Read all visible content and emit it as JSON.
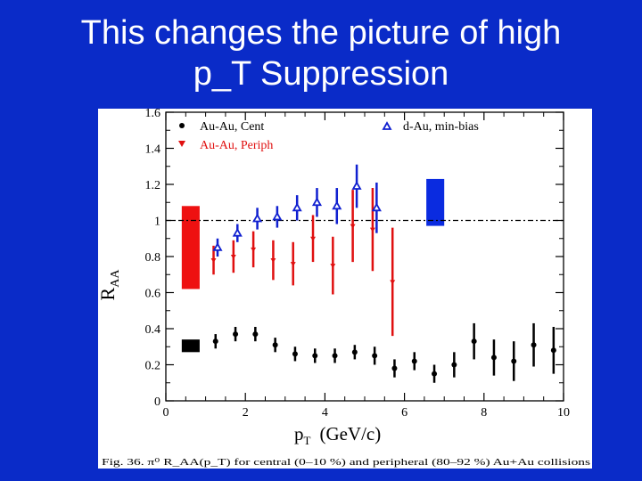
{
  "slide": {
    "title_line1": "This changes the picture of high",
    "title_line2": "p_T Suppression",
    "background_color": "#0a2bc8",
    "title_color": "#ffffff"
  },
  "chart_data": {
    "type": "scatter",
    "title": "",
    "xlabel": "p",
    "xlabel_sub": "T",
    "xlabel_units": "(GeV/c)",
    "ylabel": "R",
    "ylabel_sub": "AA",
    "xlim": [
      0,
      10
    ],
    "ylim": [
      0,
      1.6
    ],
    "xticks": [
      0,
      2,
      4,
      6,
      8,
      10
    ],
    "yticks": [
      "0",
      "0.2",
      "0.4",
      "0.6",
      "0.8",
      "1",
      "1.2",
      "1.4",
      "1.6"
    ],
    "reference_line": 1,
    "caption": "Fig. 36. π⁰ R_AA(p_T) for central (0–10 %) and peripheral (80–92 %) Au+Au collisions",
    "legend": [
      {
        "label": "Au-Au, Cent",
        "marker": "circle",
        "color": "#000000"
      },
      {
        "label": "Au-Au, Periph",
        "marker": "triangle-down",
        "color": "#e01010"
      },
      {
        "label": "d-Au, min-bias",
        "marker": "triangle-up-open",
        "color": "#1020d0"
      }
    ],
    "series": [
      {
        "name": "Au-Au, Cent",
        "color": "#000000",
        "x": [
          1.25,
          1.75,
          2.25,
          2.75,
          3.25,
          3.75,
          4.25,
          4.75,
          5.25,
          5.75,
          6.25,
          6.75,
          7.25,
          7.75,
          8.25,
          8.75,
          9.25,
          9.75
        ],
        "y": [
          0.33,
          0.37,
          0.37,
          0.31,
          0.26,
          0.25,
          0.25,
          0.27,
          0.25,
          0.18,
          0.22,
          0.15,
          0.2,
          0.33,
          0.24,
          0.22,
          0.31,
          0.28
        ],
        "err": [
          0.04,
          0.04,
          0.04,
          0.04,
          0.04,
          0.04,
          0.04,
          0.04,
          0.05,
          0.05,
          0.05,
          0.05,
          0.07,
          0.1,
          0.1,
          0.11,
          0.12,
          0.13
        ]
      },
      {
        "name": "Au-Au, Periph",
        "color": "#e01010",
        "x": [
          1.2,
          1.7,
          2.2,
          2.7,
          3.2,
          3.7,
          4.2,
          4.7,
          5.2,
          5.7
        ],
        "y": [
          0.78,
          0.8,
          0.84,
          0.78,
          0.76,
          0.9,
          0.75,
          0.97,
          0.95,
          0.66
        ],
        "err": [
          0.08,
          0.09,
          0.1,
          0.11,
          0.12,
          0.13,
          0.16,
          0.2,
          0.23,
          0.3
        ]
      },
      {
        "name": "d-Au, min-bias",
        "color": "#1020d0",
        "x": [
          1.3,
          1.8,
          2.3,
          2.8,
          3.3,
          3.8,
          4.3,
          4.8,
          5.3
        ],
        "y": [
          0.85,
          0.93,
          1.01,
          1.02,
          1.07,
          1.1,
          1.08,
          1.19,
          1.07
        ],
        "err": [
          0.05,
          0.05,
          0.06,
          0.06,
          0.07,
          0.08,
          0.1,
          0.12,
          0.14
        ]
      }
    ],
    "uncertainty_boxes": [
      {
        "name": "Au-Au, Periph normalization",
        "color": "#ee1111",
        "x": [
          0.4,
          0.85
        ],
        "y": [
          0.62,
          1.08
        ]
      },
      {
        "name": "Au-Au, Cent normalization",
        "color": "#000000",
        "x": [
          0.4,
          0.85
        ],
        "y": [
          0.27,
          0.34
        ]
      },
      {
        "name": "d-Au, min-bias normalization",
        "color": "#0a2be0",
        "x": [
          6.55,
          7.0
        ],
        "y": [
          0.97,
          1.23
        ]
      }
    ]
  }
}
